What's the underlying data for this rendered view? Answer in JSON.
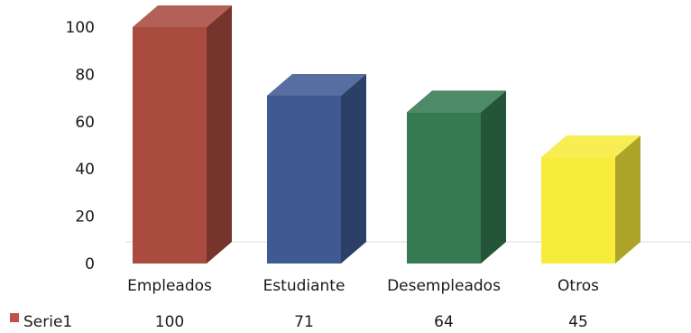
{
  "chart_data": {
    "type": "bar",
    "title": "",
    "xlabel": "",
    "ylabel": "",
    "categories": [
      "Empleados",
      "Estudiante",
      "Desempleados",
      "Otros"
    ],
    "series": [
      {
        "name": "Serie1",
        "values": [
          100,
          71,
          64,
          45
        ],
        "value_labels": [
          "100",
          "71",
          "64",
          "45"
        ]
      }
    ],
    "ylim": [
      0,
      100
    ],
    "yticks": [
      0,
      20,
      40,
      60,
      80,
      100
    ],
    "ytick_labels": [
      "0",
      "20",
      "40",
      "60",
      "80",
      "100"
    ],
    "grid": false,
    "legend_position": "bottom-left, data table row",
    "bar_colors": [
      "#a94c3f",
      "#3f5a93",
      "#357a52",
      "#f7ec3c"
    ],
    "legend_color": "#c0504d"
  }
}
